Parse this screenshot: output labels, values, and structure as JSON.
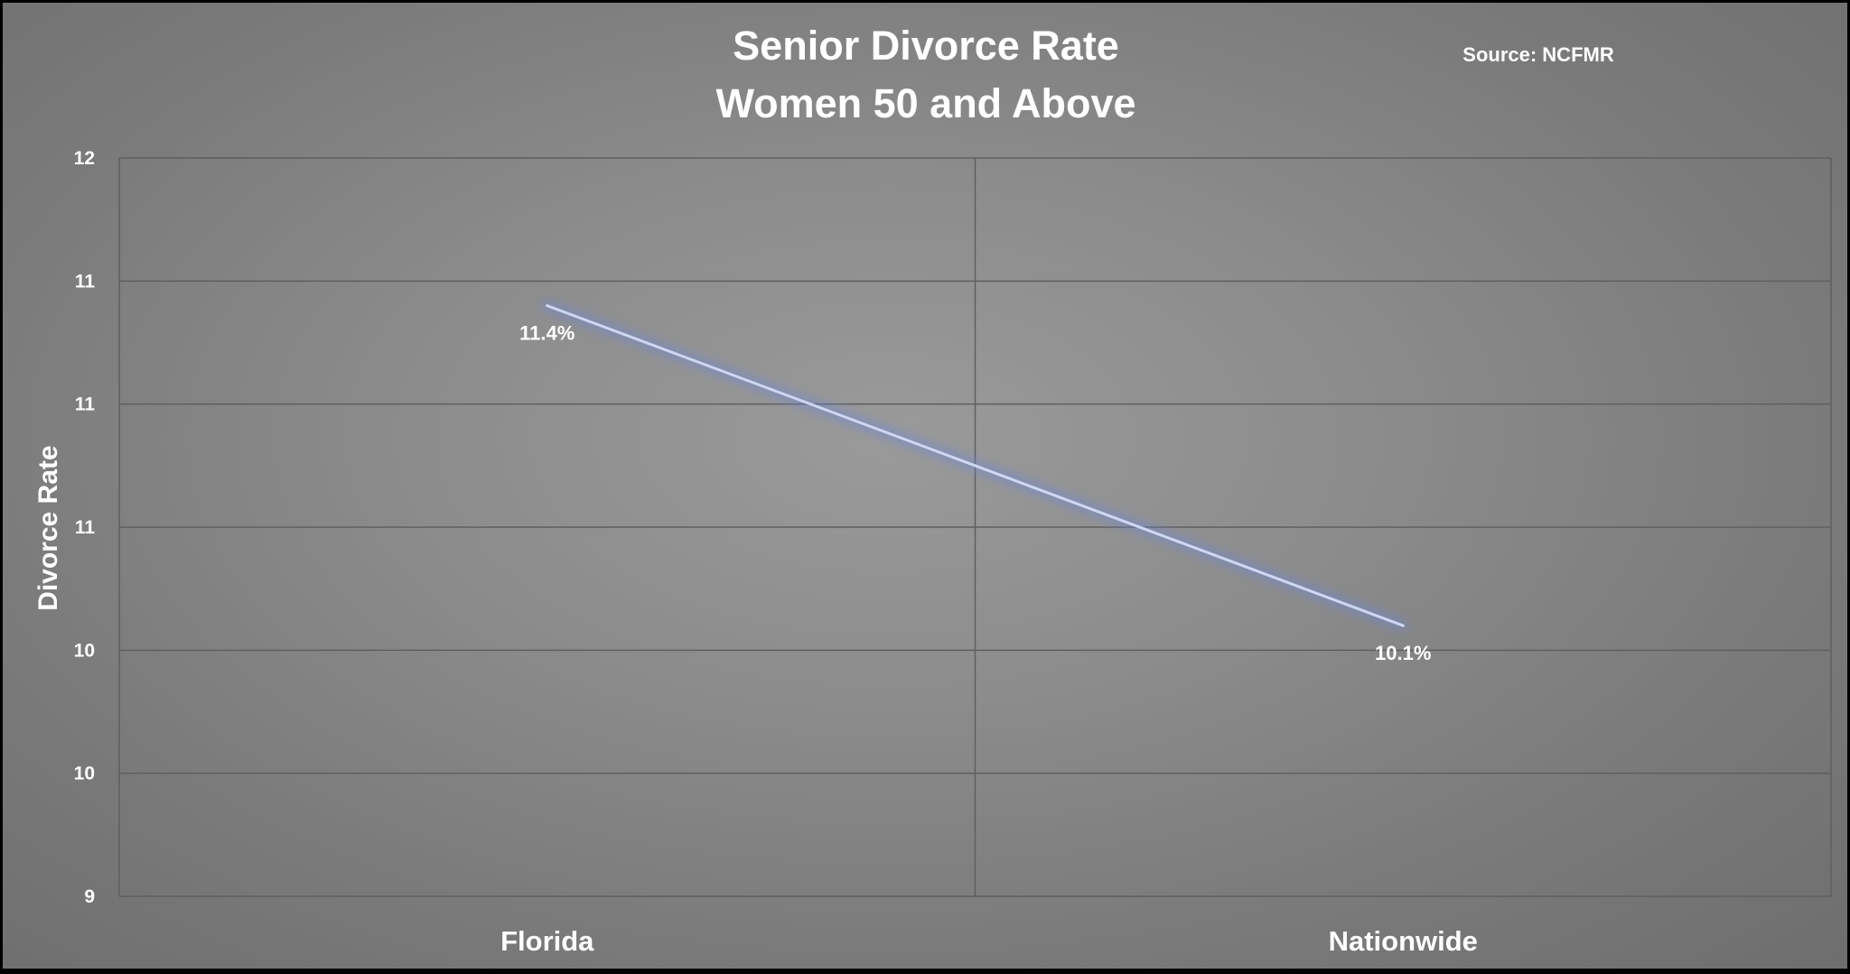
{
  "chart_data": {
    "type": "line",
    "title": "Senior Divorce Rate",
    "subtitle": "Women 50 and Above",
    "source_note": "Source: NCFMR",
    "xlabel": "",
    "ylabel": "Divorce Rate",
    "categories": [
      "Florida",
      "Nationwide"
    ],
    "series": [
      {
        "values": [
          11.4,
          10.1
        ],
        "data_labels": [
          "11.4%",
          "10.1%"
        ]
      }
    ],
    "y_ticks": [
      9,
      9.5,
      10,
      10.5,
      11,
      11.5,
      12
    ],
    "y_tick_labels": [
      "9",
      "10",
      "10",
      "11",
      "11",
      "11",
      "12"
    ],
    "ylim": [
      9,
      12
    ],
    "grid": true,
    "legend": "none",
    "colors": {
      "line": "#cfd8f0",
      "line_glow": "#6f86d6",
      "grid": "#5f5f5f",
      "text": "#ffffff"
    }
  }
}
